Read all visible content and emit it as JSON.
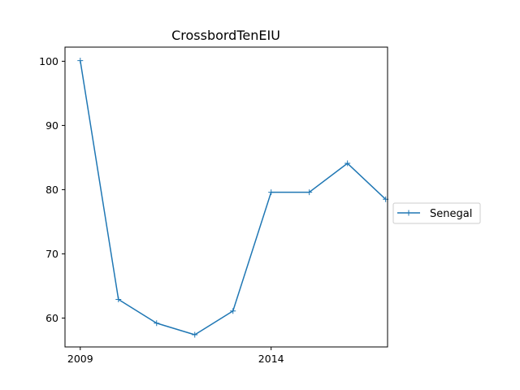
{
  "chart_data": {
    "type": "line",
    "title": "CrossbordTenEIU",
    "xlabel": "",
    "ylabel": "",
    "x": [
      2009,
      2010,
      2011,
      2012,
      2013,
      2014,
      2015,
      2016,
      2017
    ],
    "series": [
      {
        "name": "Senegal",
        "color": "#1f77b4",
        "marker": "plus",
        "values": [
          100.1,
          62.9,
          59.2,
          57.4,
          61.1,
          79.6,
          79.6,
          84.1,
          78.5
        ]
      }
    ],
    "xlim": [
      2008.6,
      2017.05
    ],
    "ylim": [
      55.5,
      102.2
    ],
    "xticks": [
      2009,
      2014
    ],
    "yticks": [
      60,
      70,
      80,
      90,
      100
    ],
    "grid": false,
    "legend": {
      "placement": "right-outside",
      "entries": [
        "Senegal"
      ]
    }
  }
}
